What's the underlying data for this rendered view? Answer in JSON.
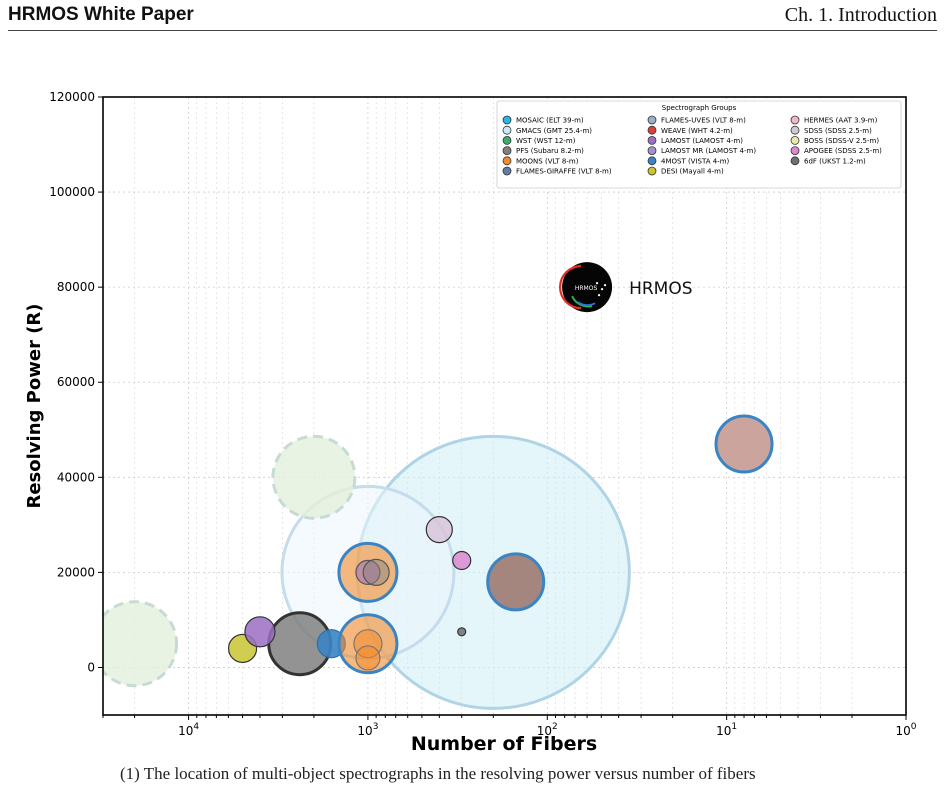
{
  "header": {
    "left_title": "HRMOS White Paper",
    "right_title": "Ch. 1. Introduction"
  },
  "caption_text": "(1) The location of multi-object spectrographs in the resolving power versus number of fibers",
  "chart_data": {
    "type": "scatter",
    "xlabel": "Number of Fibers",
    "ylabel": "Resolving Power (R)",
    "x_scale": "log",
    "x_reversed": true,
    "xlim": [
      30000,
      1
    ],
    "ylim": [
      -10000,
      120000
    ],
    "x_tick_labels": [
      "10^4",
      "10^3",
      "10^2",
      "10^1",
      "10^0"
    ],
    "x_tick_values": [
      10000,
      1000,
      100,
      10,
      1
    ],
    "y_tick_values": [
      0,
      20000,
      40000,
      60000,
      80000,
      100000,
      120000
    ],
    "grid": true,
    "legend": {
      "title": "Spectrograph Groups",
      "placement": "top-right",
      "entries": [
        {
          "label": "MOSAIC (ELT 39-m)",
          "color": "#29b6e6"
        },
        {
          "label": "GMACS (GMT 25.4-m)",
          "color": "#cce8f4"
        },
        {
          "label": "WST (WST 12-m)",
          "color": "#3cab6c"
        },
        {
          "label": "PFS (Subaru 8.2-m)",
          "color": "#808080"
        },
        {
          "label": "MOONS (VLT 8-m)",
          "color": "#f28a2c"
        },
        {
          "label": "FLAMES-GIRAFFE (VLT 8-m)",
          "color": "#607da8"
        },
        {
          "label": "FLAMES-UVES (VLT 8-m)",
          "color": "#9bb0c8"
        },
        {
          "label": "WEAVE (WHT 4.2-m)",
          "color": "#d94040"
        },
        {
          "label": "LAMOST (LAMOST 4-m)",
          "color": "#9a6fc4"
        },
        {
          "label": "LAMOST MR (LAMOST 4-m)",
          "color": "#a890d0"
        },
        {
          "label": "4MOST (VISTA 4-m)",
          "color": "#3b84c4"
        },
        {
          "label": "DESI (Mayall 4-m)",
          "color": "#c9c431"
        },
        {
          "label": "HERMES (AAT 3.9-m)",
          "color": "#f2b8c8"
        },
        {
          "label": "SDSS (SDSS 2.5-m)",
          "color": "#cccccc"
        },
        {
          "label": "BOSS (SDSS-V 2.5-m)",
          "color": "#e8e8a8"
        },
        {
          "label": "APOGEE (SDSS 2.5-m)",
          "color": "#d98ad0"
        },
        {
          "label": "6dF (UKST 1.2-m)",
          "color": "#707070"
        }
      ]
    },
    "points": [
      {
        "x": 200,
        "y": 20000,
        "fill": "#cdeef5",
        "stroke": "#b0d4e6",
        "r": 136,
        "opacity": 0.55,
        "dashed": false
      },
      {
        "x": 1000,
        "y": 20000,
        "fill": "#ebf5fb",
        "stroke": "#c4dcec",
        "r": 86,
        "opacity": 0.55,
        "dashed": false
      },
      {
        "x": 20000,
        "y": 5000,
        "fill": "#e3f0dc",
        "stroke": "#c6dbd3",
        "r": 42,
        "opacity": 0.8,
        "dashed": true
      },
      {
        "x": 2000,
        "y": 40000,
        "fill": "#e3f0dc",
        "stroke": "#c6dbd3",
        "r": 41,
        "opacity": 0.8,
        "dashed": true
      },
      {
        "x": 2400,
        "y": 5000,
        "fill": "#808080",
        "stroke": "#333333",
        "r": 31,
        "opacity": 0.85,
        "dashed": false
      },
      {
        "x": 5000,
        "y": 4000,
        "fill": "#c9c431",
        "stroke": "#333333",
        "r": 14,
        "opacity": 0.85,
        "dashed": false
      },
      {
        "x": 4000,
        "y": 7500,
        "fill": "#9a6fc4",
        "stroke": "#333333",
        "r": 15,
        "opacity": 0.85,
        "dashed": false
      },
      {
        "x": 1600,
        "y": 5000,
        "fill": "#3b84c4",
        "stroke": "#2a6ea8",
        "r": 14,
        "opacity": 0.9,
        "dashed": false
      },
      {
        "x": 1000,
        "y": 20000,
        "fill": "#f28a2c",
        "stroke": "#3b84c4",
        "r": 29,
        "opacity": 0.6,
        "dashed": false
      },
      {
        "x": 1000,
        "y": 5000,
        "fill": "#f28a2c",
        "stroke": "#3b84c4",
        "r": 29,
        "opacity": 0.6,
        "dashed": false
      },
      {
        "x": 1000,
        "y": 20000,
        "fill": "#9a6fc4",
        "stroke": "#555555",
        "r": 12,
        "opacity": 0.55,
        "dashed": false
      },
      {
        "x": 900,
        "y": 20000,
        "fill": "#808080",
        "stroke": "#555555",
        "r": 13,
        "opacity": 0.45,
        "dashed": false
      },
      {
        "x": 1000,
        "y": 5000,
        "fill": "#f28a2c",
        "stroke": "#777777",
        "r": 14,
        "opacity": 0.55,
        "dashed": false
      },
      {
        "x": 1000,
        "y": 2000,
        "fill": "#f28a2c",
        "stroke": "#777777",
        "r": 12,
        "opacity": 0.55,
        "dashed": false
      },
      {
        "x": 400,
        "y": 29000,
        "fill": "#d9c4d9",
        "stroke": "#333333",
        "r": 13,
        "opacity": 0.85,
        "dashed": false
      },
      {
        "x": 300,
        "y": 22500,
        "fill": "#d98ad0",
        "stroke": "#333333",
        "r": 9,
        "opacity": 0.85,
        "dashed": false
      },
      {
        "x": 300,
        "y": 7500,
        "fill": "#707070",
        "stroke": "#333333",
        "r": 4,
        "opacity": 0.85,
        "dashed": false
      },
      {
        "x": 150,
        "y": 18000,
        "fill": "#a08078",
        "stroke": "#3b84c4",
        "r": 28,
        "opacity": 0.95,
        "dashed": false
      },
      {
        "x": 8,
        "y": 47000,
        "fill": "#c8a098",
        "stroke": "#3b84c4",
        "r": 28,
        "opacity": 0.95,
        "dashed": false
      }
    ],
    "hrmos_marker": {
      "x": 60,
      "y": 80000,
      "label": "HRMOS",
      "logo_text": "HRMOS"
    }
  }
}
